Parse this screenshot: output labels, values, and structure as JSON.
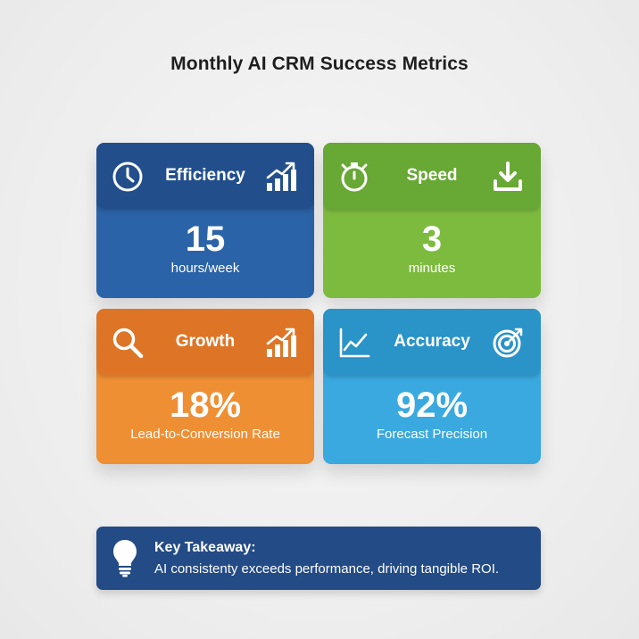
{
  "title": "Monthly AI CRM Success Metrics",
  "cards": [
    {
      "label": "Efficiency",
      "value": "15",
      "unit": "hours/week",
      "color": "#2b63a8",
      "header_color": "#224f8c",
      "icon_left": "clock-icon",
      "icon_right": "bar-chart-up-icon"
    },
    {
      "label": "Speed",
      "value": "3",
      "unit": "minutes",
      "color": "#7dbb3f",
      "header_color": "#68a834",
      "icon_left": "stopwatch-icon",
      "icon_right": "download-tray-icon"
    },
    {
      "label": "Growth",
      "value": "18%",
      "unit": "Lead-to-Conversion Rate",
      "color": "#ef8f34",
      "header_color": "#de7526",
      "icon_left": "magnifier-icon",
      "icon_right": "bar-chart-up-icon"
    },
    {
      "label": "Accuracy",
      "value": "92%",
      "unit": "Forecast Precision",
      "color": "#3aa9df",
      "header_color": "#2a93c8",
      "icon_left": "line-chart-icon",
      "icon_right": "target-icon"
    }
  ],
  "takeaway": {
    "heading": "Key Takeaway:",
    "text": "AI consistenty exceeds performance, driving tangible ROI.",
    "icon": "lightbulb-icon",
    "color": "#234b86"
  }
}
